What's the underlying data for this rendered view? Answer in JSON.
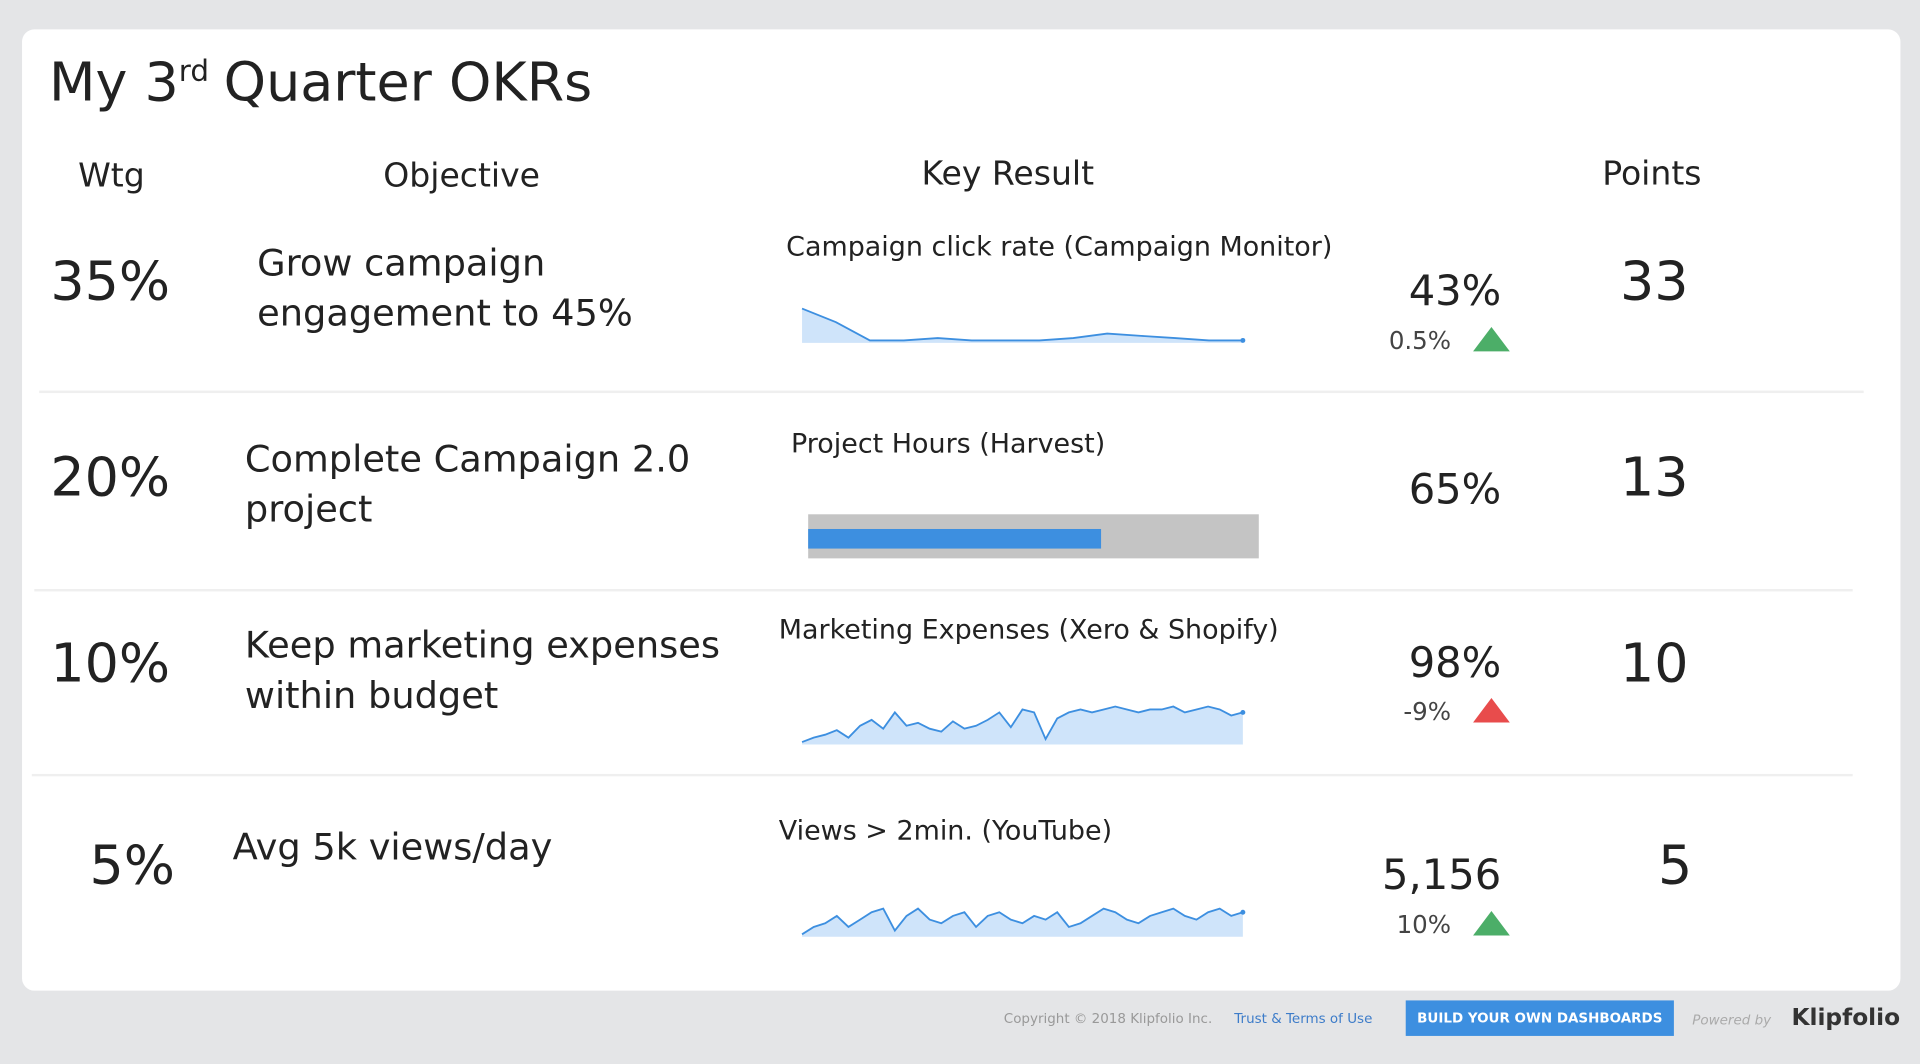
{
  "header": {
    "title_prefix": "My 3",
    "title_superscript": "rd",
    "title_suffix": "Quarter OKRs"
  },
  "columns": [
    "Wtg",
    "Objective",
    "Key Result",
    "Points"
  ],
  "rows": [
    {
      "weight": "35%",
      "objective": [
        "Grow campaign",
        "engagement to 45%"
      ],
      "metric": "Campaign click rate (Campaign Monitor)",
      "kind": "sparkline",
      "trend": [
        58,
        52,
        44,
        44,
        45,
        44,
        44,
        44,
        45,
        47,
        46,
        45,
        44,
        44
      ],
      "result": "43%",
      "change": {
        "text": "0.5%",
        "color": "#4cae68"
      },
      "points": "33"
    },
    {
      "weight": "20%",
      "objective": [
        "Complete Campaign 2.0",
        "project"
      ],
      "metric": "Project Hours (Harvest)",
      "kind": "progress",
      "result": {
        "value": 65,
        "label": "65%"
      },
      "points": "13"
    },
    {
      "weight": "10%",
      "objective": [
        "Keep marketing expenses",
        "within budget"
      ],
      "metric": "Marketing Expenses (Xero & Shopify)",
      "kind": "sparkline",
      "trend": [
        10,
        13,
        15,
        18,
        13,
        21,
        25,
        19,
        30,
        21,
        23,
        19,
        17,
        24,
        19,
        21,
        25,
        30,
        20,
        32,
        30,
        12,
        26,
        30,
        32,
        30,
        32,
        34,
        32,
        30,
        32,
        32,
        34,
        30,
        32,
        34,
        32,
        28,
        30
      ],
      "result": "98%",
      "change": {
        "text": "-9%",
        "color": "#e84c4c"
      },
      "points": "10"
    },
    {
      "weight": "5%",
      "objective": [
        "Avg 5k views/day"
      ],
      "metric": "Views > 2min. (YouTube)",
      "kind": "sparkline",
      "trend": [
        8,
        12,
        14,
        18,
        12,
        16,
        20,
        22,
        10,
        18,
        22,
        16,
        14,
        18,
        20,
        12,
        18,
        20,
        16,
        14,
        18,
        16,
        20,
        12,
        14,
        18,
        22,
        20,
        16,
        14,
        18,
        20,
        22,
        18,
        16,
        20,
        22,
        18,
        20
      ],
      "result": "5,156",
      "change": {
        "text": "10%",
        "color": "#4cae68"
      },
      "points": "5"
    }
  ],
  "footer": {
    "copyright": "Copyright © 2018 Klipfolio Inc.",
    "terms": "Trust & Terms of Use",
    "button": "BUILD YOUR OWN DASHBOARDS",
    "powered_by": "Powered by",
    "brand": "Klipfolio"
  }
}
